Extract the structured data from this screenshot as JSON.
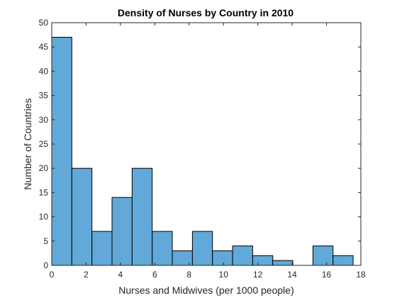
{
  "chart_data": {
    "type": "bar",
    "histogram": true,
    "title": "Density of Nurses by Country in 2010",
    "xlabel": "Nurses and Midwives (per 1000 people)",
    "ylabel": "Number of Countries",
    "xlim": [
      0,
      18
    ],
    "ylim": [
      0,
      50
    ],
    "x_ticks": [
      0,
      2,
      4,
      6,
      8,
      10,
      12,
      14,
      16,
      18
    ],
    "y_ticks": [
      0,
      5,
      10,
      15,
      20,
      25,
      30,
      35,
      40,
      45,
      50
    ],
    "bin_width": 1.17,
    "bin_edges": [
      0,
      1.17,
      2.34,
      3.51,
      4.68,
      5.85,
      7.02,
      8.19,
      9.36,
      10.53,
      11.7,
      12.87,
      14.04,
      15.21,
      16.38,
      17.55
    ],
    "values": [
      47,
      20,
      7,
      14,
      20,
      7,
      3,
      7,
      3,
      4,
      2,
      1,
      0,
      4,
      2
    ],
    "bar_color": "#62a8d8",
    "edge_color": "#000000",
    "grid": false
  }
}
